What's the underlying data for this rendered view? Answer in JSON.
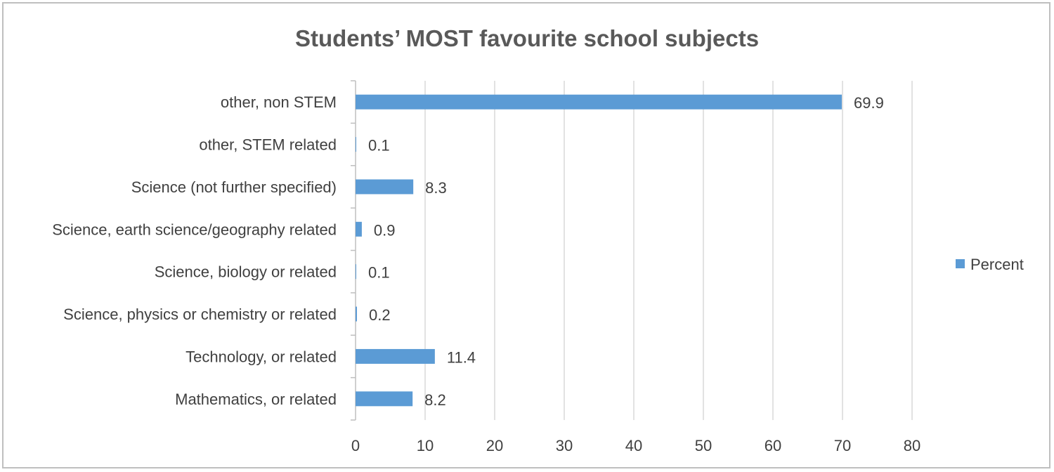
{
  "chart_data": {
    "type": "bar",
    "orientation": "horizontal",
    "title": "Students’ MOST favourite school subjects",
    "categories": [
      "Mathematics, or related",
      "Technology, or related",
      "Science, physics or chemistry or related",
      "Science, biology or related",
      "Science, earth science/geography related",
      "Science (not further specified)",
      "other,  STEM related",
      "other, non STEM"
    ],
    "series": [
      {
        "name": "Percent",
        "values": [
          8.2,
          11.4,
          0.2,
          0.1,
          0.9,
          8.3,
          0.1,
          69.9
        ],
        "color": "#5b9bd5"
      }
    ],
    "data_labels": [
      "8.2",
      "11.4",
      "0.2",
      "0.1",
      "0.9",
      "8.3",
      "0.1",
      "69.9"
    ],
    "xlim": [
      0,
      80
    ],
    "xticks": [
      "0",
      "10",
      "20",
      "30",
      "40",
      "50",
      "60",
      "70",
      "80"
    ],
    "grid": "vertical",
    "legend": "right"
  },
  "colors": {
    "bar": "#5b9bd5",
    "grid": "#d9d9d9",
    "axis": "#bfbfbf",
    "text": "#404040",
    "title": "#595959"
  }
}
